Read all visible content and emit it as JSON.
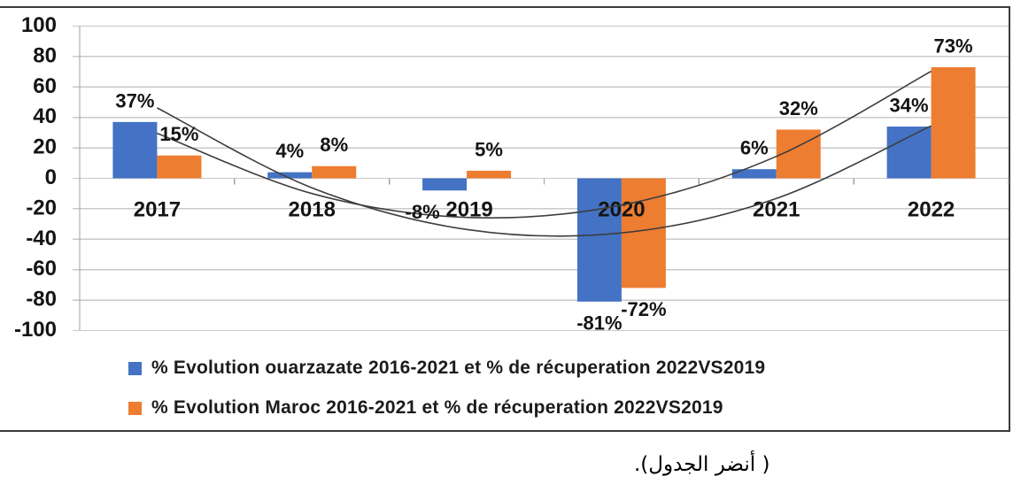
{
  "page": {
    "background": "#ffffff",
    "caption_arabic": "( أنضر الجدول)."
  },
  "colors": {
    "series_blue": "#4472C4",
    "series_orange": "#ED7D31",
    "gridline": "#c9c9c9",
    "axis_line": "#a0a0a0",
    "trendline": "#3d3d3d",
    "label_text": "#141414",
    "frame_border": "#3a3a3a"
  },
  "chart_data": {
    "type": "bar",
    "title": "",
    "categories": [
      "2017",
      "2018",
      "2019",
      "2020",
      "2021",
      "2022"
    ],
    "series": [
      {
        "name": "% Evolution ouarzazate 2016-2021 et % de récuperation 2022VS2019",
        "color_key": "series_blue",
        "values": [
          37,
          4,
          -8,
          -81,
          6,
          34
        ],
        "data_labels": [
          "37%",
          "4%",
          "-8%",
          "-81%",
          "6%",
          "34%"
        ]
      },
      {
        "name": "% Evolution Maroc 2016-2021 et % de récuperation 2022VS2019",
        "color_key": "series_orange",
        "values": [
          15,
          8,
          5,
          -72,
          32,
          73
        ],
        "data_labels": [
          "15%",
          "8%",
          "5%",
          "-72%",
          "32%",
          "73%"
        ]
      }
    ],
    "trendlines": [
      {
        "for_series": "ouarzazate",
        "shape": "polynomial",
        "values_at_categories": [
          46.3,
          -6.2,
          -33.6,
          -35.9,
          -13.2,
          34.5
        ]
      },
      {
        "for_series": "Maroc",
        "shape": "polynomial",
        "values_at_categories": [
          29.6,
          -10.0,
          -25.7,
          -17.6,
          14.4,
          70.3
        ]
      }
    ],
    "y_axis": {
      "min": -100,
      "max": 100,
      "tick_step": 20,
      "tick_labels": [
        "100",
        "80",
        "60",
        "40",
        "20",
        "0",
        "-20",
        "-40",
        "-60",
        "-80",
        "-100"
      ]
    },
    "x_axis": {
      "tick_labels": [
        "2017",
        "2018",
        "2019",
        "2020",
        "2021",
        "2022"
      ]
    },
    "grid": true,
    "legend_position": "bottom-left"
  }
}
